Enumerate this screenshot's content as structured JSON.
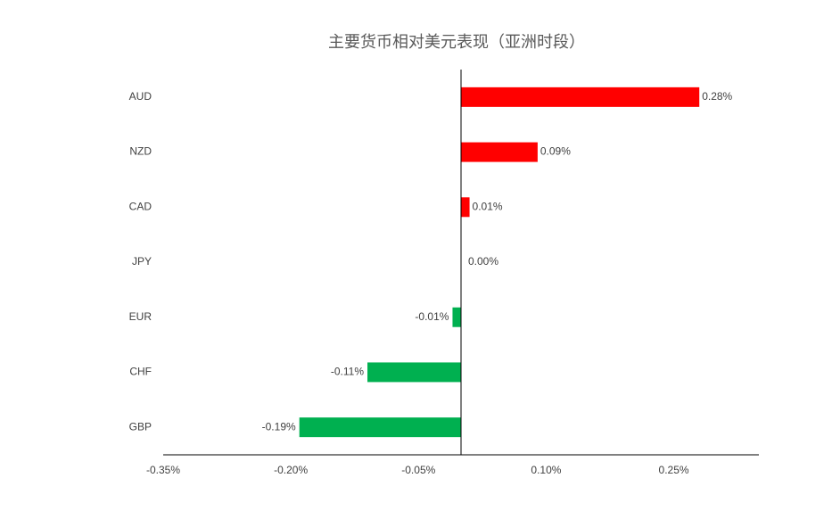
{
  "chart_data": {
    "type": "bar",
    "orientation": "horizontal",
    "title": "主要货币相对美元表现（亚洲时段）",
    "categories": [
      "AUD",
      "NZD",
      "CAD",
      "JPY",
      "EUR",
      "CHF",
      "GBP"
    ],
    "values": [
      0.28,
      0.09,
      0.01,
      0.0,
      -0.01,
      -0.11,
      -0.19
    ],
    "value_labels": [
      "0.28%",
      "0.09%",
      "0.01%",
      "0.00%",
      "-0.01%",
      "-0.11%",
      "-0.19%"
    ],
    "positive_color": "#ff0000",
    "negative_color": "#00b050",
    "xlim": [
      -0.35,
      0.35
    ],
    "xticks": [
      {
        "value": -0.35,
        "label": "-0.35%"
      },
      {
        "value": -0.2,
        "label": "-0.20%"
      },
      {
        "value": -0.05,
        "label": "-0.05%"
      },
      {
        "value": 0.1,
        "label": "0.10%"
      },
      {
        "value": 0.25,
        "label": "0.25%"
      }
    ],
    "grid": false
  }
}
